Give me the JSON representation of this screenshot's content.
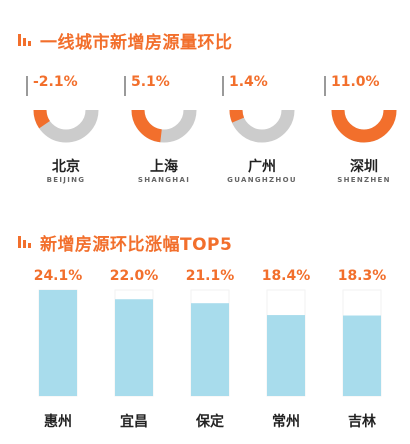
{
  "header_1": {
    "title": "一线城市新增房源量环比"
  },
  "header_2": {
    "title": "新增房源环比涨幅TOP5"
  },
  "colors": {
    "accent": "#f26f2c",
    "track": "#cccccc",
    "bar": "#a8dcec",
    "bar_bg": "#ffffff"
  },
  "chart_data": [
    {
      "type": "pie",
      "title": "一线城市新增房源量环比",
      "items": [
        {
          "city": "北京",
          "pinyin": "BEIJING",
          "label": "-2.1%",
          "value": -2.1
        },
        {
          "city": "上海",
          "pinyin": "SHANGHAI",
          "label": "5.1%",
          "value": 5.1
        },
        {
          "city": "广州",
          "pinyin": "GUANGHZHOU",
          "label": "1.4%",
          "value": 1.4
        },
        {
          "city": "深圳",
          "pinyin": "SHENZHEN",
          "label": "11.0%",
          "value": 11.0
        }
      ]
    },
    {
      "type": "bar",
      "title": "新增房源环比涨幅TOP5",
      "categories": [
        "惠州",
        "宜昌",
        "保定",
        "常州",
        "吉林"
      ],
      "values": [
        24.1,
        22.0,
        21.1,
        18.4,
        18.3
      ],
      "labels": [
        "24.1%",
        "22.0%",
        "21.1%",
        "18.4%",
        "18.3%"
      ],
      "ylim": [
        0,
        24.1
      ]
    }
  ]
}
